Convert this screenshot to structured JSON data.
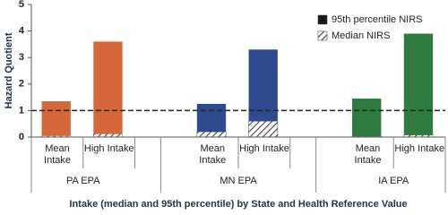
{
  "chart_data": {
    "type": "bar",
    "ylabel": "Hazard Quotient",
    "xlabel": "Intake (median and 95th percentile) by State and Health Reference Value",
    "groups": [
      "PA EPA",
      "MN EPA",
      "IA EPA"
    ],
    "group_colors": [
      "#d4683a",
      "#2e4b8f",
      "#2f7a3f"
    ],
    "categories": [
      "Mean Intake",
      "High Intake",
      "Mean Intake",
      "High Intake",
      "Mean Intake",
      "High Intake"
    ],
    "series": [
      {
        "name": "95th percentile NIRS",
        "color": "#1a1a1a",
        "values": [
          1.35,
          3.6,
          1.25,
          3.3,
          1.45,
          3.9
        ]
      },
      {
        "name": "Median NIRS",
        "color": "#333333",
        "pattern": "hatch",
        "values": [
          0.05,
          0.12,
          0.2,
          0.6,
          0.03,
          0.08
        ]
      }
    ],
    "reference_line": 1,
    "ylim": [
      0,
      5
    ],
    "yticks": [
      0,
      1,
      2,
      3,
      4,
      5
    ],
    "legend": "top-right"
  }
}
